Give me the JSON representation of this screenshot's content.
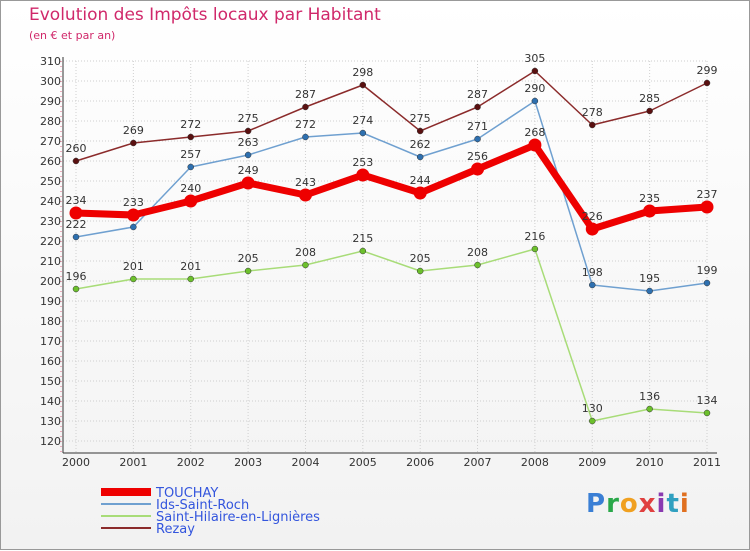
{
  "header": {
    "title": "Evolution des Impôts locaux par Habitant",
    "subtitle": "(en € et par an)"
  },
  "logo": {
    "text": "Proxiti"
  },
  "chart_data": {
    "type": "line",
    "title": "Evolution des Impôts locaux par Habitant",
    "subtitle": "(en € et par an)",
    "xlabel": "",
    "ylabel": "",
    "categories": [
      "2000",
      "2001",
      "2002",
      "2003",
      "2004",
      "2005",
      "2006",
      "2007",
      "2008",
      "2009",
      "2010",
      "2011"
    ],
    "y_ticks": [
      120,
      130,
      140,
      150,
      160,
      170,
      180,
      190,
      200,
      210,
      220,
      230,
      240,
      250,
      260,
      270,
      280,
      290,
      300,
      310
    ],
    "ylim": [
      120,
      310
    ],
    "grid": true,
    "legend_position": "bottom-left",
    "series": [
      {
        "name": "Rezay",
        "color": "#8b2b2b",
        "marker": "#5a1010",
        "values": [
          260,
          269,
          272,
          275,
          287,
          298,
          275,
          287,
          305,
          278,
          285,
          299
        ]
      },
      {
        "name": "Ids-Saint-Roch",
        "color": "#6fa0d0",
        "marker": "#2e70b0",
        "values": [
          222,
          227,
          257,
          263,
          272,
          274,
          262,
          271,
          290,
          198,
          195,
          199
        ]
      },
      {
        "name": "Saint-Hilaire-en-Lignières",
        "color": "#a8dc78",
        "marker": "#6cc02c",
        "values": [
          196,
          201,
          201,
          205,
          208,
          215,
          205,
          208,
          216,
          130,
          136,
          134
        ]
      },
      {
        "name": "TOUCHAY",
        "color": "#ee0000",
        "marker": "#ee0000",
        "values": [
          234,
          233,
          240,
          249,
          243,
          253,
          244,
          256,
          268,
          226,
          235,
          237
        ]
      }
    ],
    "point_labels": {
      "Rezay": [
        "260",
        "269",
        "272",
        "275",
        "287",
        "298",
        "275",
        "287",
        "305",
        "278",
        "285",
        "299"
      ],
      "Ids-Saint-Roch": [
        "222",
        "",
        "257",
        "263",
        "272",
        "274",
        "262",
        "271",
        "290",
        "198",
        "195",
        "199"
      ],
      "Saint-Hilaire-en-Lignières": [
        "196",
        "201",
        "201",
        "205",
        "208",
        "215",
        "205",
        "208",
        "216",
        "130",
        "136",
        "134"
      ],
      "TOUCHAY": [
        "234",
        "233",
        "240",
        "249",
        "243",
        "253",
        "244",
        "256",
        "268",
        "226",
        "235",
        "237"
      ]
    },
    "legend_order": [
      "TOUCHAY",
      "Ids-Saint-Roch",
      "Saint-Hilaire-en-Lignières",
      "Rezay"
    ]
  }
}
